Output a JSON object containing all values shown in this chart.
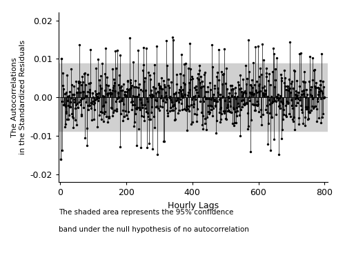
{
  "n_lags": 800,
  "seed": 42,
  "ci_band": 0.0088,
  "ylim": [
    -0.022,
    0.022
  ],
  "yticks": [
    -0.02,
    -0.01,
    0.0,
    0.01,
    0.02
  ],
  "xticks": [
    0,
    200,
    400,
    600,
    800
  ],
  "xlabel": "Hourly Lags",
  "ylabel_line1": "The Autocorrelations",
  "ylabel_line2": "in the Standardized Residuals",
  "ci_color": "#d0d0d0",
  "line_color": "black",
  "marker_color": "black",
  "background_color": "white",
  "caption_line1": "The shaded area represents the 95% confidence",
  "caption_line2": "band under the null hypothesis of no autocorrelation",
  "caption_fontsize": 7.5,
  "axis_fontsize": 9,
  "ylabel_fontsize": 8,
  "xlabel_fontsize": 9,
  "acf_std": 0.004,
  "n_spikes": 40,
  "spike_min": 0.011,
  "spike_max": 0.016
}
